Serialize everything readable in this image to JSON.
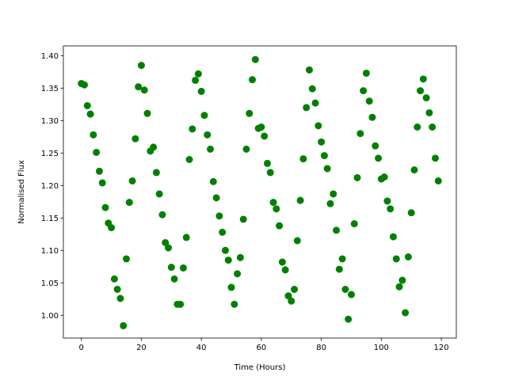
{
  "chart_data": {
    "type": "scatter",
    "xlabel": "Time (Hours)",
    "ylabel": "Normalised Flux",
    "xlim": [
      -6,
      125
    ],
    "ylim": [
      0.965,
      1.415
    ],
    "xticks": [
      0,
      20,
      40,
      60,
      80,
      100,
      120
    ],
    "yticks": [
      1.0,
      1.05,
      1.1,
      1.15,
      1.2,
      1.25,
      1.3,
      1.35,
      1.4
    ],
    "xtick_labels": [
      "0",
      "20",
      "40",
      "60",
      "80",
      "100",
      "120"
    ],
    "ytick_labels": [
      "1.00",
      "1.05",
      "1.10",
      "1.15",
      "1.20",
      "1.25",
      "1.30",
      "1.35",
      "1.40"
    ],
    "grid": false,
    "marker_color": "#008000",
    "points": [
      [
        0,
        1.357
      ],
      [
        1,
        1.355
      ],
      [
        2,
        1.323
      ],
      [
        3,
        1.31
      ],
      [
        4,
        1.278
      ],
      [
        5,
        1.251
      ],
      [
        6,
        1.222
      ],
      [
        7,
        1.204
      ],
      [
        8,
        1.166
      ],
      [
        9,
        1.142
      ],
      [
        10,
        1.135
      ],
      [
        11,
        1.056
      ],
      [
        12,
        1.04
      ],
      [
        13,
        1.026
      ],
      [
        14,
        0.984
      ],
      [
        15,
        1.087
      ],
      [
        16,
        1.174
      ],
      [
        17,
        1.207
      ],
      [
        18,
        1.272
      ],
      [
        19,
        1.352
      ],
      [
        20,
        1.385
      ],
      [
        21,
        1.347
      ],
      [
        22,
        1.311
      ],
      [
        23,
        1.253
      ],
      [
        24,
        1.259
      ],
      [
        25,
        1.22
      ],
      [
        26,
        1.187
      ],
      [
        27,
        1.155
      ],
      [
        28,
        1.112
      ],
      [
        29,
        1.104
      ],
      [
        30,
        1.074
      ],
      [
        31,
        1.056
      ],
      [
        32,
        1.017
      ],
      [
        33,
        1.017
      ],
      [
        34,
        1.073
      ],
      [
        35,
        1.12
      ],
      [
        36,
        1.24
      ],
      [
        37,
        1.287
      ],
      [
        38,
        1.362
      ],
      [
        39,
        1.372
      ],
      [
        40,
        1.345
      ],
      [
        41,
        1.308
      ],
      [
        42,
        1.278
      ],
      [
        43,
        1.256
      ],
      [
        44,
        1.206
      ],
      [
        45,
        1.181
      ],
      [
        46,
        1.153
      ],
      [
        47,
        1.128
      ],
      [
        48,
        1.1
      ],
      [
        49,
        1.085
      ],
      [
        50,
        1.043
      ],
      [
        51,
        1.017
      ],
      [
        52,
        1.064
      ],
      [
        53,
        1.089
      ],
      [
        54,
        1.148
      ],
      [
        55,
        1.256
      ],
      [
        56,
        1.311
      ],
      [
        57,
        1.363
      ],
      [
        58,
        1.394
      ],
      [
        59,
        1.288
      ],
      [
        60,
        1.29
      ],
      [
        61,
        1.276
      ],
      [
        62,
        1.234
      ],
      [
        63,
        1.22
      ],
      [
        64,
        1.174
      ],
      [
        65,
        1.164
      ],
      [
        66,
        1.138
      ],
      [
        67,
        1.082
      ],
      [
        68,
        1.07
      ],
      [
        69,
        1.03
      ],
      [
        70,
        1.022
      ],
      [
        71,
        1.04
      ],
      [
        72,
        1.115
      ],
      [
        73,
        1.177
      ],
      [
        74,
        1.241
      ],
      [
        75,
        1.32
      ],
      [
        76,
        1.378
      ],
      [
        77,
        1.349
      ],
      [
        78,
        1.327
      ],
      [
        79,
        1.292
      ],
      [
        80,
        1.267
      ],
      [
        81,
        1.246
      ],
      [
        82,
        1.226
      ],
      [
        83,
        1.172
      ],
      [
        84,
        1.187
      ],
      [
        85,
        1.131
      ],
      [
        86,
        1.071
      ],
      [
        87,
        1.087
      ],
      [
        88,
        1.04
      ],
      [
        89,
        0.994
      ],
      [
        90,
        1.032
      ],
      [
        91,
        1.141
      ],
      [
        92,
        1.212
      ],
      [
        93,
        1.28
      ],
      [
        94,
        1.346
      ],
      [
        95,
        1.373
      ],
      [
        96,
        1.33
      ],
      [
        97,
        1.305
      ],
      [
        98,
        1.261
      ],
      [
        99,
        1.242
      ],
      [
        100,
        1.21
      ],
      [
        101,
        1.213
      ],
      [
        102,
        1.176
      ],
      [
        103,
        1.164
      ],
      [
        104,
        1.121
      ],
      [
        105,
        1.087
      ],
      [
        106,
        1.044
      ],
      [
        107,
        1.054
      ],
      [
        108,
        1.004
      ],
      [
        109,
        1.09
      ],
      [
        110,
        1.158
      ],
      [
        111,
        1.224
      ],
      [
        112,
        1.29
      ],
      [
        113,
        1.346
      ],
      [
        114,
        1.364
      ],
      [
        115,
        1.335
      ],
      [
        116,
        1.312
      ],
      [
        117,
        1.29
      ],
      [
        118,
        1.242
      ],
      [
        119,
        1.207
      ]
    ]
  }
}
